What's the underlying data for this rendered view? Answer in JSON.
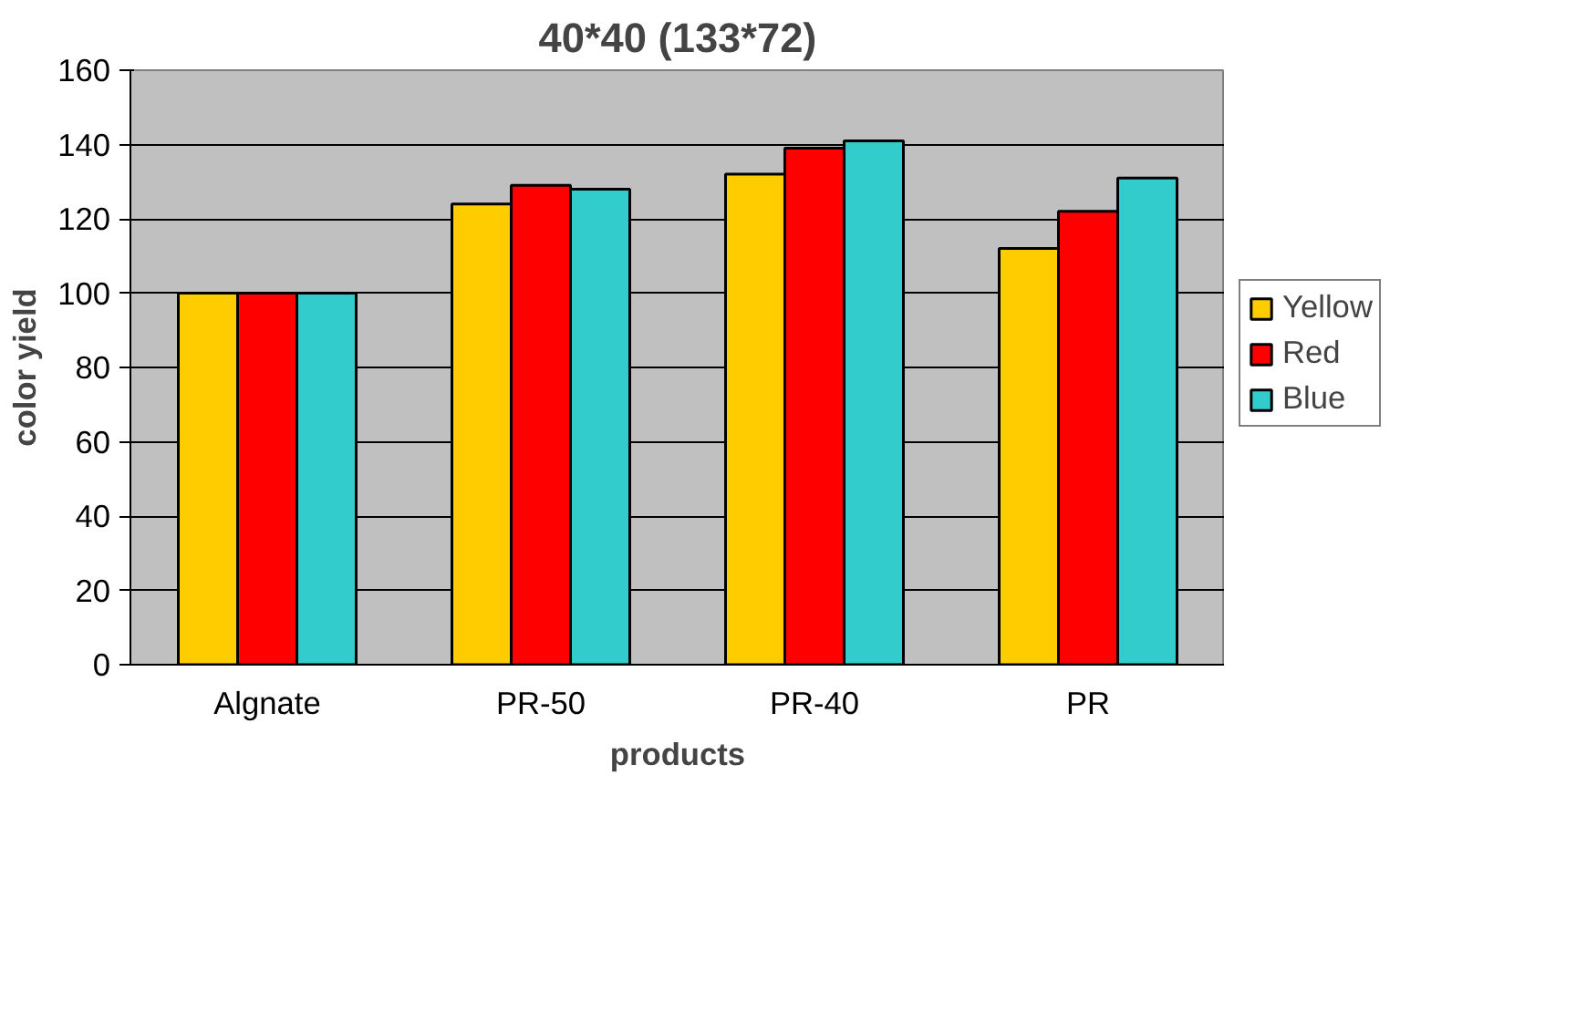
{
  "chart_data": {
    "type": "bar",
    "title": "40*40 (133*72)",
    "xlabel": "products",
    "ylabel": "color yield",
    "categories": [
      "Algnate",
      "PR-50",
      "PR-40",
      "PR"
    ],
    "series": [
      {
        "name": "Yellow",
        "color": "#ffcc00",
        "values": [
          100,
          124,
          132,
          112
        ]
      },
      {
        "name": "Red",
        "color": "#ff0000",
        "values": [
          100,
          129,
          139,
          122
        ]
      },
      {
        "name": "Blue",
        "color": "#33cccc",
        "values": [
          100,
          128,
          141,
          131
        ]
      }
    ],
    "ylim": [
      0,
      160
    ],
    "yticks": [
      0,
      20,
      40,
      60,
      80,
      100,
      120,
      140,
      160
    ],
    "grid": "y",
    "legend": "right"
  }
}
